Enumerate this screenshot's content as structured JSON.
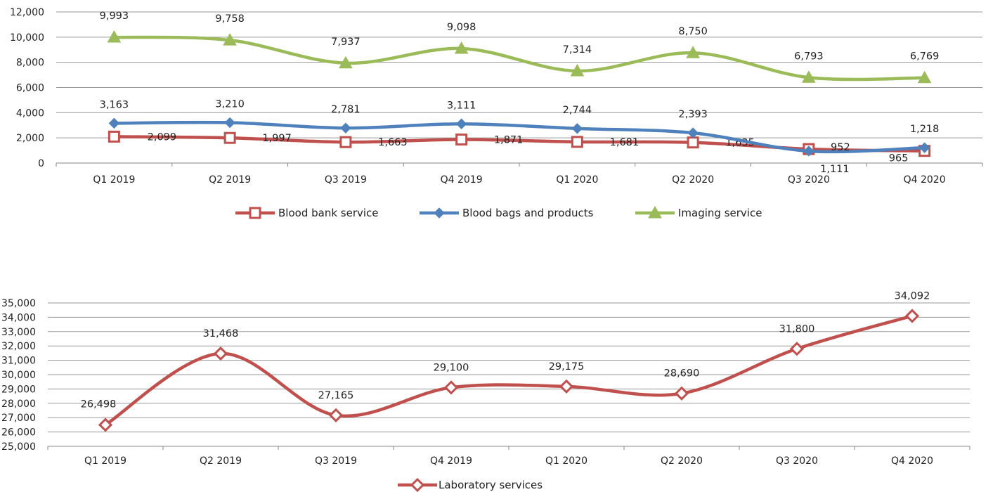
{
  "chart_data": [
    {
      "type": "line",
      "categories": [
        "Q1 2019",
        "Q2 2019",
        "Q3 2019",
        "Q4 2019",
        "Q1 2020",
        "Q2 2020",
        "Q3 2020",
        "Q4 2020"
      ],
      "ylim": [
        0,
        12000
      ],
      "yticks": [
        0,
        2000,
        4000,
        6000,
        8000,
        10000,
        12000
      ],
      "grid": true,
      "legend_position": "bottom",
      "series": [
        {
          "name": "Blood bank service",
          "values": [
            2099,
            1997,
            1663,
            1871,
            1681,
            1635,
            1111,
            965
          ],
          "labels": [
            "2,099",
            "1,997",
            "1,663",
            "1,871",
            "1,681",
            "1,635",
            "1,111",
            "965"
          ],
          "color": "#c0504d",
          "marker": "square-open"
        },
        {
          "name": "Blood bags and products",
          "values": [
            3163,
            3210,
            2781,
            3111,
            2744,
            2393,
            952,
            1218
          ],
          "labels": [
            "3,163",
            "3,210",
            "2,781",
            "3,111",
            "2,744",
            "2,393",
            "952",
            "1,218"
          ],
          "color": "#4f81bd",
          "marker": "diamond"
        },
        {
          "name": "Imaging service",
          "values": [
            9993,
            9758,
            7937,
            9098,
            7314,
            8750,
            6793,
            6769
          ],
          "labels": [
            "9,993",
            "9,758",
            "7,937",
            "9,098",
            "7,314",
            "8,750",
            "6,793",
            "6,769"
          ],
          "color": "#9bbb59",
          "marker": "triangle"
        }
      ]
    },
    {
      "type": "line",
      "categories": [
        "Q1 2019",
        "Q2 2019",
        "Q3 2019",
        "Q4 2019",
        "Q1 2020",
        "Q2 2020",
        "Q3 2020",
        "Q4 2020"
      ],
      "ylim": [
        25000,
        35000
      ],
      "yticks": [
        25000,
        26000,
        27000,
        28000,
        29000,
        30000,
        31000,
        32000,
        33000,
        34000,
        35000
      ],
      "grid": true,
      "legend_position": "bottom",
      "series": [
        {
          "name": "Laboratory services",
          "values": [
            26498,
            31468,
            27165,
            29100,
            29175,
            28690,
            31800,
            34092
          ],
          "labels": [
            "26,498",
            "31,468",
            "27,165",
            "29,100",
            "29,175",
            "28,690",
            "31,800",
            "34,092"
          ],
          "color": "#c0504d",
          "marker": "diamond-open"
        }
      ]
    }
  ]
}
